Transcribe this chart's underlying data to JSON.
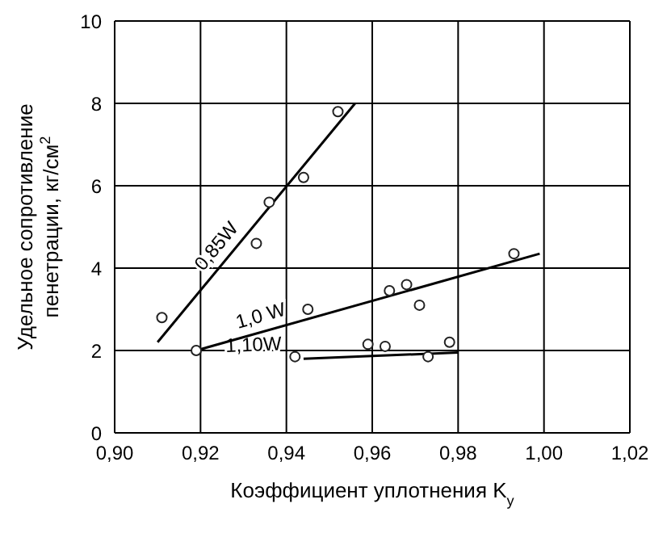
{
  "chart_data": {
    "type": "scatter",
    "xlabel": "Коэффициент уплотнения K$_{y}$",
    "ylabel": "Удельное сопротивление пенетрации, кг/см$^{2}$",
    "xlim": [
      0.9,
      1.02
    ],
    "xticks": [
      {
        "value": 0.9,
        "label": "0,90"
      },
      {
        "value": 0.92,
        "label": "0,92"
      },
      {
        "value": 0.94,
        "label": "0,94"
      },
      {
        "value": 0.96,
        "label": "0,96"
      },
      {
        "value": 0.98,
        "label": "0,98"
      },
      {
        "value": 1.0,
        "label": "1,00"
      },
      {
        "value": 1.02,
        "label": "1,02"
      }
    ],
    "ylim": [
      0,
      10
    ],
    "yticks": [
      0,
      2,
      4,
      6,
      8,
      10
    ],
    "grid": true,
    "marker": "circle",
    "series": [
      {
        "color": "#222222",
        "x": [
          0.911,
          0.933,
          0.936,
          0.944,
          0.952
        ],
        "values": [
          2.8,
          4.6,
          5.6,
          6.2,
          7.8
        ]
      },
      {
        "color": "#222222",
        "x": [
          0.919,
          0.945,
          0.964,
          0.968,
          0.971,
          0.993
        ],
        "values": [
          2.0,
          3.0,
          3.45,
          3.6,
          3.1,
          4.35
        ]
      },
      {
        "color": "#222222",
        "x": [
          0.942,
          0.959,
          0.963,
          0.973,
          0.978
        ],
        "values": [
          1.85,
          2.15,
          2.1,
          1.85,
          2.2
        ]
      },
      {
        "type": "line",
        "marker": "none",
        "name": "0,85W",
        "color": "#000000",
        "x": [
          0.91,
          0.956
        ],
        "values": [
          2.2,
          8.0
        ]
      },
      {
        "type": "line",
        "marker": "none",
        "name": "1,0 W",
        "color": "#000000",
        "x": [
          0.919,
          0.999
        ],
        "values": [
          2.0,
          4.35
        ]
      },
      {
        "type": "line",
        "marker": "none",
        "name": "1,10W",
        "color": "#000000",
        "x": [
          0.944,
          0.98
        ],
        "values": [
          1.8,
          1.95
        ]
      }
    ]
  }
}
